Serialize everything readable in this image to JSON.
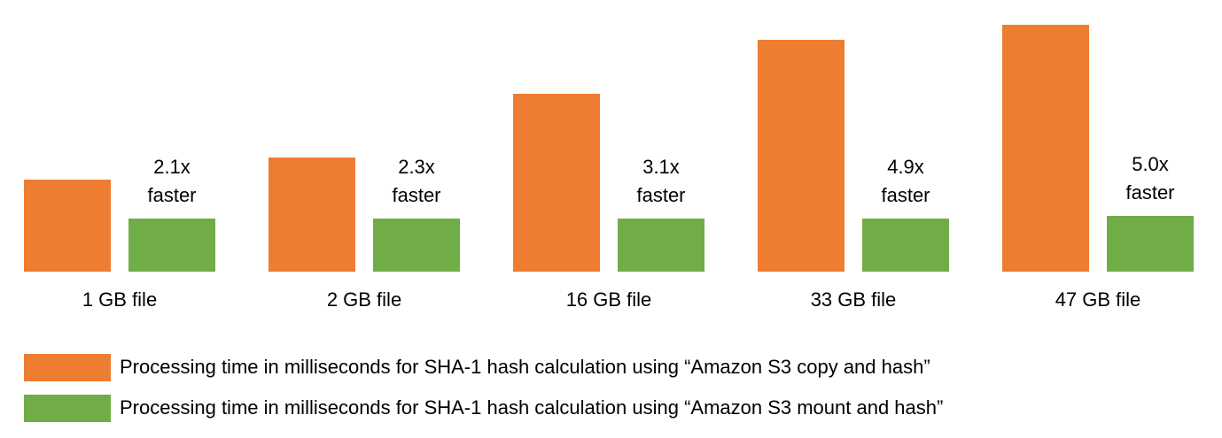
{
  "chart_data": {
    "type": "bar",
    "categories": [
      "1 GB file",
      "2 GB file",
      "16 GB file",
      "33 GB file",
      "47 GB file"
    ],
    "series": [
      {
        "name": "Processing time in milliseconds for SHA-1 hash calculation using “Amazon S3 copy and hash”",
        "color": "#ed7d31",
        "values": [
          104,
          129,
          201,
          262,
          279
        ]
      },
      {
        "name": "Processing time in milliseconds for SHA-1 hash calculation using “Amazon S3 mount and hash”",
        "color": "#70ad47",
        "values": [
          60,
          60,
          60,
          60,
          63
        ]
      }
    ],
    "annotations": [
      [
        "2.1x",
        "faster"
      ],
      [
        "2.3x",
        "faster"
      ],
      [
        "3.1x",
        "faster"
      ],
      [
        "4.9x",
        "faster"
      ],
      [
        "5.0x",
        "faster"
      ]
    ],
    "ylim": [
      0,
      280
    ]
  }
}
